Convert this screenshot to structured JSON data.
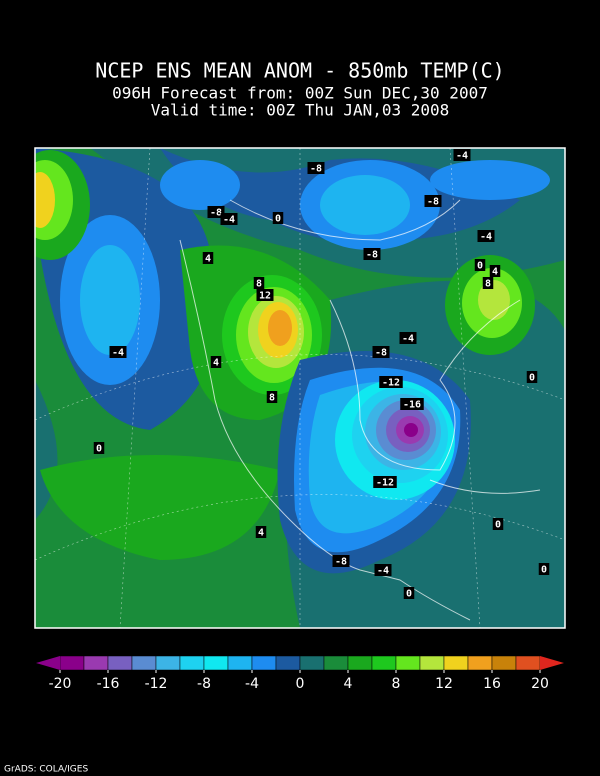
{
  "header": {
    "title": "NCEP ENS MEAN ANOM - 850mb TEMP(C)",
    "forecast": "096H Forecast from: 00Z Sun DEC,30 2007",
    "valid": "Valid time: 00Z Thu JAN,03 2008"
  },
  "map": {
    "contour_labels": [
      -8,
      -4,
      -8,
      -4,
      0,
      -8,
      -4,
      -8,
      4,
      0,
      4,
      8,
      12,
      8,
      -4,
      -4,
      -8,
      4,
      0,
      -12,
      8,
      -16,
      0,
      -12,
      0,
      4,
      -8,
      -4,
      0,
      0
    ]
  },
  "colorbar": {
    "levels": [
      -20,
      -18,
      -16,
      -14,
      -12,
      -10,
      -8,
      -6,
      -4,
      -2,
      0,
      2,
      4,
      6,
      8,
      10,
      12,
      14,
      16,
      18,
      20
    ],
    "colors": [
      "#8a008a",
      "#9a3ab0",
      "#7860c0",
      "#5a8cd2",
      "#3cb4e6",
      "#1ed2f0",
      "#10e8f0",
      "#1eb4f0",
      "#1e8cf0",
      "#1c5aa0",
      "#197070",
      "#1a8c3a",
      "#1aa81e",
      "#1ec81e",
      "#64e61e",
      "#b4e63c",
      "#f0d21e",
      "#f0a01e",
      "#c8820a",
      "#e05020"
    ],
    "under_color": "#8a008a",
    "over_color": "#e0261e",
    "ticks": [
      -20,
      -16,
      -12,
      -8,
      -4,
      0,
      4,
      8,
      12,
      16,
      20
    ]
  },
  "footer": "GrADS: COLA/IGES"
}
